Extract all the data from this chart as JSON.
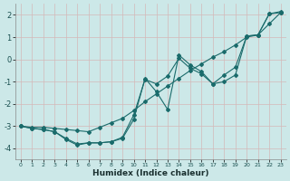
{
  "xlabel": "Humidex (Indice chaleur)",
  "bg_color": "#cce8e8",
  "grid_color": "#c8dada",
  "line_color": "#1a6b6b",
  "xlim": [
    -0.5,
    23.5
  ],
  "ylim": [
    -4.5,
    2.5
  ],
  "yticks": [
    -4,
    -3,
    -2,
    -1,
    0,
    1,
    2
  ],
  "xticks": [
    0,
    1,
    2,
    3,
    4,
    5,
    6,
    7,
    8,
    9,
    10,
    11,
    12,
    13,
    14,
    15,
    16,
    17,
    18,
    19,
    20,
    21,
    22,
    23
  ],
  "series": [
    {
      "x": [
        0,
        1,
        2,
        3,
        4,
        5,
        6,
        7,
        8,
        9,
        10,
        11,
        12,
        13,
        14,
        15,
        16,
        17,
        18,
        19,
        20,
        21,
        22,
        23
      ],
      "y": [
        -3.0,
        -3.05,
        -3.05,
        -3.1,
        -3.15,
        -3.2,
        -3.25,
        -3.05,
        -2.85,
        -2.65,
        -2.3,
        -1.9,
        -1.55,
        -1.2,
        -0.85,
        -0.5,
        -0.2,
        0.1,
        0.35,
        0.65,
        1.0,
        1.1,
        1.6,
        2.1
      ]
    },
    {
      "x": [
        0,
        1,
        2,
        3,
        4,
        5,
        6,
        7,
        8,
        9,
        10,
        11,
        12,
        13,
        14,
        15,
        16,
        17,
        18,
        19,
        20,
        21,
        22,
        23
      ],
      "y": [
        -3.0,
        -3.1,
        -3.15,
        -3.25,
        -3.6,
        -3.85,
        -3.75,
        -3.75,
        -3.7,
        -3.55,
        -2.7,
        -0.85,
        -1.45,
        -2.25,
        0.2,
        -0.25,
        -0.55,
        -1.1,
        -0.7,
        -0.35,
        1.05,
        1.1,
        2.05,
        2.1
      ]
    },
    {
      "x": [
        0,
        1,
        2,
        3,
        4,
        5,
        6,
        7,
        8,
        9,
        10,
        11,
        12,
        13,
        14,
        15,
        16,
        17,
        18,
        19,
        20,
        21,
        22,
        23
      ],
      "y": [
        -3.0,
        -3.1,
        -3.15,
        -3.25,
        -3.55,
        -3.8,
        -3.75,
        -3.75,
        -3.7,
        -3.5,
        -2.5,
        -0.9,
        -1.1,
        -0.75,
        0.05,
        -0.4,
        -0.65,
        -1.1,
        -1.0,
        -0.7,
        1.05,
        1.1,
        2.05,
        2.15
      ]
    }
  ]
}
